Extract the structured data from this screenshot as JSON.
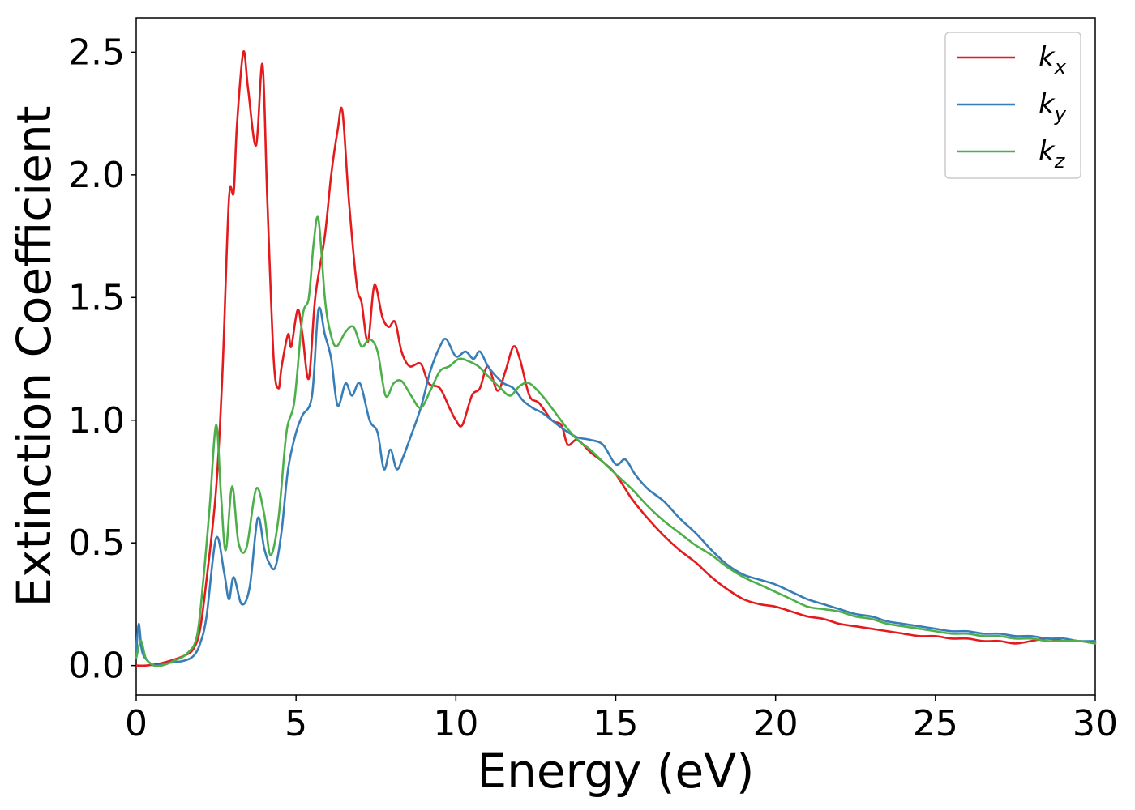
{
  "chart_data": {
    "type": "line",
    "xlabel": "Energy (eV)",
    "ylabel": "Extinction Coefficient",
    "xlim": [
      0,
      30
    ],
    "ylim": [
      -0.12,
      2.64
    ],
    "xticks": [
      0,
      5,
      10,
      15,
      20,
      25,
      30
    ],
    "xtick_labels": [
      "0",
      "5",
      "10",
      "15",
      "20",
      "25",
      "30"
    ],
    "yticks": [
      0.0,
      0.5,
      1.0,
      1.5,
      2.0,
      2.5
    ],
    "ytick_labels": [
      "0.0",
      "0.5",
      "1.0",
      "1.5",
      "2.0",
      "2.5"
    ],
    "grid": false,
    "legend_position": "top-right",
    "series": [
      {
        "name": "k_x",
        "label_main": "k",
        "label_sub": "x",
        "color": "#e41a1c",
        "x": [
          0,
          0.3,
          0.8,
          1.5,
          1.8,
          2.0,
          2.2,
          2.5,
          2.7,
          2.9,
          3.05,
          3.15,
          3.35,
          3.5,
          3.75,
          3.95,
          4.1,
          4.3,
          4.45,
          4.55,
          4.75,
          4.85,
          5.05,
          5.2,
          5.4,
          5.6,
          5.9,
          6.1,
          6.3,
          6.45,
          6.65,
          6.9,
          7.05,
          7.25,
          7.45,
          7.7,
          7.9,
          8.1,
          8.3,
          8.55,
          8.9,
          9.15,
          9.5,
          9.8,
          10.0,
          10.2,
          10.5,
          10.75,
          11.0,
          11.3,
          11.55,
          11.8,
          12.0,
          12.3,
          12.6,
          13.0,
          13.3,
          13.5,
          13.8,
          14.2,
          14.6,
          15.0,
          15.5,
          16.0,
          16.5,
          17.0,
          17.5,
          18.0,
          18.5,
          19.0,
          19.5,
          20.0,
          20.5,
          21.0,
          21.5,
          22.0,
          22.5,
          23.0,
          23.5,
          24.0,
          24.5,
          25.0,
          25.5,
          26.0,
          26.5,
          27.0,
          27.5,
          28.0,
          28.5,
          29.0,
          29.5,
          30.0
        ],
        "y": [
          0.0,
          0.0,
          0.01,
          0.04,
          0.07,
          0.15,
          0.35,
          0.72,
          1.2,
          1.9,
          1.93,
          2.2,
          2.5,
          2.35,
          2.12,
          2.45,
          1.9,
          1.25,
          1.13,
          1.22,
          1.35,
          1.3,
          1.45,
          1.35,
          1.17,
          1.5,
          1.75,
          2.0,
          2.18,
          2.26,
          1.9,
          1.55,
          1.48,
          1.32,
          1.55,
          1.42,
          1.38,
          1.4,
          1.28,
          1.22,
          1.23,
          1.15,
          1.13,
          1.05,
          1.0,
          0.98,
          1.1,
          1.13,
          1.22,
          1.12,
          1.2,
          1.3,
          1.25,
          1.1,
          1.07,
          1.0,
          0.98,
          0.9,
          0.92,
          0.87,
          0.83,
          0.78,
          0.68,
          0.6,
          0.53,
          0.47,
          0.42,
          0.36,
          0.31,
          0.27,
          0.25,
          0.24,
          0.22,
          0.2,
          0.19,
          0.17,
          0.16,
          0.15,
          0.14,
          0.13,
          0.12,
          0.12,
          0.11,
          0.11,
          0.1,
          0.1,
          0.09,
          0.1,
          0.11,
          0.1,
          0.1,
          0.09
        ]
      },
      {
        "name": "k_y",
        "label_main": "k",
        "label_sub": "y",
        "color": "#377eb8",
        "x": [
          0,
          0.08,
          0.18,
          0.35,
          0.6,
          1.0,
          1.5,
          1.8,
          2.0,
          2.2,
          2.5,
          2.75,
          2.9,
          3.05,
          3.3,
          3.55,
          3.8,
          4.0,
          4.15,
          4.35,
          4.55,
          4.75,
          5.0,
          5.2,
          5.5,
          5.7,
          5.9,
          6.1,
          6.3,
          6.55,
          6.75,
          7.0,
          7.3,
          7.55,
          7.75,
          7.95,
          8.15,
          8.35,
          8.55,
          8.9,
          9.2,
          9.5,
          9.7,
          10.0,
          10.3,
          10.55,
          10.75,
          11.0,
          11.25,
          11.5,
          11.8,
          12.1,
          12.4,
          12.7,
          13.0,
          13.4,
          13.8,
          14.2,
          14.6,
          15.0,
          15.3,
          15.6,
          16.0,
          16.5,
          17.0,
          17.5,
          18.0,
          18.5,
          19.0,
          19.5,
          20.0,
          20.5,
          21.0,
          21.5,
          22.0,
          22.5,
          23.0,
          23.5,
          24.0,
          24.5,
          25.0,
          25.5,
          26.0,
          26.5,
          27.0,
          27.5,
          28.0,
          28.5,
          29.0,
          29.5,
          30.0
        ],
        "y": [
          0.05,
          0.17,
          0.06,
          0.02,
          0.0,
          0.01,
          0.02,
          0.04,
          0.09,
          0.2,
          0.52,
          0.38,
          0.27,
          0.36,
          0.25,
          0.32,
          0.6,
          0.48,
          0.42,
          0.4,
          0.55,
          0.8,
          0.95,
          1.02,
          1.1,
          1.45,
          1.35,
          1.25,
          1.06,
          1.15,
          1.1,
          1.15,
          1.0,
          0.95,
          0.8,
          0.88,
          0.8,
          0.85,
          0.92,
          1.05,
          1.2,
          1.3,
          1.33,
          1.26,
          1.28,
          1.25,
          1.28,
          1.22,
          1.18,
          1.15,
          1.13,
          1.08,
          1.05,
          1.03,
          1.0,
          0.96,
          0.93,
          0.92,
          0.9,
          0.82,
          0.84,
          0.78,
          0.72,
          0.67,
          0.6,
          0.54,
          0.47,
          0.41,
          0.37,
          0.35,
          0.33,
          0.3,
          0.27,
          0.25,
          0.23,
          0.21,
          0.2,
          0.18,
          0.17,
          0.16,
          0.15,
          0.14,
          0.14,
          0.13,
          0.13,
          0.12,
          0.12,
          0.11,
          0.11,
          0.1,
          0.1
        ]
      },
      {
        "name": "k_z",
        "label_main": "k",
        "label_sub": "z",
        "color": "#4daf4a",
        "x": [
          0,
          0.15,
          0.3,
          0.55,
          0.8,
          1.2,
          1.6,
          1.9,
          2.1,
          2.3,
          2.5,
          2.65,
          2.8,
          3.0,
          3.2,
          3.45,
          3.75,
          4.0,
          4.2,
          4.45,
          4.7,
          4.95,
          5.2,
          5.4,
          5.55,
          5.7,
          5.9,
          6.05,
          6.25,
          6.55,
          6.8,
          7.05,
          7.3,
          7.55,
          7.8,
          8.05,
          8.3,
          8.6,
          8.9,
          9.2,
          9.5,
          9.8,
          10.1,
          10.4,
          10.7,
          11.0,
          11.4,
          11.7,
          12.0,
          12.3,
          12.7,
          13.0,
          13.4,
          13.8,
          14.2,
          14.6,
          15.0,
          15.5,
          16.0,
          16.5,
          17.0,
          17.5,
          18.0,
          18.5,
          19.0,
          19.5,
          20.0,
          20.5,
          21.0,
          21.5,
          22.0,
          22.5,
          23.0,
          23.5,
          24.0,
          24.5,
          25.0,
          25.5,
          26.0,
          26.5,
          27.0,
          27.5,
          28.0,
          28.5,
          29.0,
          29.5,
          30.0
        ],
        "y": [
          0.03,
          0.1,
          0.03,
          0.0,
          0.0,
          0.02,
          0.05,
          0.12,
          0.35,
          0.65,
          0.98,
          0.7,
          0.47,
          0.73,
          0.5,
          0.48,
          0.72,
          0.62,
          0.45,
          0.6,
          0.95,
          1.08,
          1.42,
          1.5,
          1.72,
          1.82,
          1.5,
          1.37,
          1.3,
          1.36,
          1.38,
          1.3,
          1.33,
          1.28,
          1.1,
          1.15,
          1.16,
          1.1,
          1.05,
          1.12,
          1.2,
          1.22,
          1.25,
          1.24,
          1.22,
          1.18,
          1.13,
          1.1,
          1.14,
          1.15,
          1.1,
          1.05,
          0.98,
          0.92,
          0.88,
          0.83,
          0.78,
          0.72,
          0.65,
          0.59,
          0.54,
          0.49,
          0.45,
          0.4,
          0.36,
          0.33,
          0.3,
          0.27,
          0.24,
          0.23,
          0.22,
          0.2,
          0.19,
          0.17,
          0.16,
          0.15,
          0.14,
          0.13,
          0.13,
          0.12,
          0.12,
          0.11,
          0.11,
          0.1,
          0.1,
          0.1,
          0.09
        ]
      }
    ]
  }
}
